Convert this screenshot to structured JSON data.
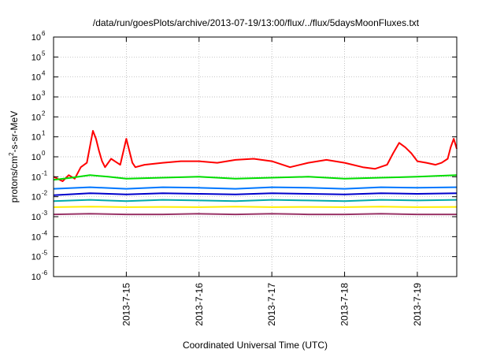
{
  "chart_data": {
    "type": "line",
    "title": "/data/run/goesPlots/archive/2013-07-19/13:00/flux/../flux/5daysMoonFluxes.txt",
    "xlabel": "Coordinated Universal Time (UTC)",
    "ylabel": {
      "prefix": "protons/cm",
      "superscript": "2",
      "suffix": "-s-sr-MeV"
    },
    "x_start": "2013-07-14 00:00",
    "x_end": "2013-07-19 13:00",
    "xticks": [
      "2013-7-15",
      "2013-7-16",
      "2013-7-17",
      "2013-7-18",
      "2013-7-19"
    ],
    "y_scale": "log",
    "ylim": [
      1e-06,
      1000000.0
    ],
    "yticks": [
      {
        "base": "10",
        "exp": "-6"
      },
      {
        "base": "10",
        "exp": "-5"
      },
      {
        "base": "10",
        "exp": "-4"
      },
      {
        "base": "10",
        "exp": "-3"
      },
      {
        "base": "10",
        "exp": "-2"
      },
      {
        "base": "10",
        "exp": "-1"
      },
      {
        "base": "10",
        "exp": "0"
      },
      {
        "base": "10",
        "exp": "1"
      },
      {
        "base": "10",
        "exp": "2"
      },
      {
        "base": "10",
        "exp": "3"
      },
      {
        "base": "10",
        "exp": "4"
      },
      {
        "base": "10",
        "exp": "5"
      },
      {
        "base": "10",
        "exp": "6"
      }
    ],
    "grid": true,
    "legend": "none",
    "series": [
      {
        "color": "#ff0000",
        "x": [
          "2013-07-14 00:00",
          "2013-07-14 03:00",
          "2013-07-14 05:00",
          "2013-07-14 07:00",
          "2013-07-14 09:00",
          "2013-07-14 11:00",
          "2013-07-14 13:00",
          "2013-07-14 14:00",
          "2013-07-14 15:00",
          "2013-07-14 16:00",
          "2013-07-14 17:00",
          "2013-07-14 19:00",
          "2013-07-14 21:00",
          "2013-07-14 22:00",
          "2013-07-15 00:00",
          "2013-07-15 02:00",
          "2013-07-15 03:00",
          "2013-07-15 06:00",
          "2013-07-15 12:00",
          "2013-07-15 18:00",
          "2013-07-16 00:00",
          "2013-07-16 06:00",
          "2013-07-16 12:00",
          "2013-07-16 18:00",
          "2013-07-17 00:00",
          "2013-07-17 06:00",
          "2013-07-17 12:00",
          "2013-07-17 18:00",
          "2013-07-18 00:00",
          "2013-07-18 06:00",
          "2013-07-18 10:00",
          "2013-07-18 14:00",
          "2013-07-18 16:00",
          "2013-07-18 18:00",
          "2013-07-18 20:00",
          "2013-07-18 22:00",
          "2013-07-19 00:00",
          "2013-07-19 03:00",
          "2013-07-19 06:00",
          "2013-07-19 08:00",
          "2013-07-19 10:00",
          "2013-07-19 11:00",
          "2013-07-19 12:00",
          "2013-07-19 13:00"
        ],
        "y": [
          0.1,
          0.06,
          0.12,
          0.08,
          0.3,
          0.5,
          20,
          8,
          2,
          0.6,
          0.3,
          0.8,
          0.5,
          0.4,
          8,
          0.5,
          0.3,
          0.4,
          0.5,
          0.6,
          0.6,
          0.5,
          0.7,
          0.8,
          0.6,
          0.3,
          0.5,
          0.7,
          0.5,
          0.3,
          0.25,
          0.4,
          1.5,
          5,
          3,
          1.5,
          0.6,
          0.5,
          0.4,
          0.5,
          0.8,
          3,
          8,
          2.5
        ]
      },
      {
        "color": "#00dd00",
        "x": [
          "2013-07-14 00:00",
          "2013-07-14 06:00",
          "2013-07-14 12:00",
          "2013-07-14 18:00",
          "2013-07-15 00:00",
          "2013-07-15 12:00",
          "2013-07-16 00:00",
          "2013-07-16 12:00",
          "2013-07-17 00:00",
          "2013-07-17 12:00",
          "2013-07-18 00:00",
          "2013-07-18 12:00",
          "2013-07-19 00:00",
          "2013-07-19 13:00"
        ],
        "y": [
          0.07,
          0.09,
          0.12,
          0.1,
          0.08,
          0.09,
          0.1,
          0.08,
          0.09,
          0.1,
          0.08,
          0.09,
          0.1,
          0.12
        ]
      },
      {
        "color": "#0077ff",
        "x": [
          "2013-07-14 00:00",
          "2013-07-14 12:00",
          "2013-07-15 00:00",
          "2013-07-15 12:00",
          "2013-07-16 00:00",
          "2013-07-16 12:00",
          "2013-07-17 00:00",
          "2013-07-17 12:00",
          "2013-07-18 00:00",
          "2013-07-18 12:00",
          "2013-07-19 00:00",
          "2013-07-19 13:00"
        ],
        "y": [
          0.025,
          0.03,
          0.025,
          0.03,
          0.028,
          0.025,
          0.03,
          0.028,
          0.025,
          0.03,
          0.028,
          0.03
        ]
      },
      {
        "color": "#0000cc",
        "x": [
          "2013-07-14 00:00",
          "2013-07-14 12:00",
          "2013-07-15 00:00",
          "2013-07-15 12:00",
          "2013-07-16 00:00",
          "2013-07-16 12:00",
          "2013-07-17 00:00",
          "2013-07-17 12:00",
          "2013-07-18 00:00",
          "2013-07-18 12:00",
          "2013-07-19 00:00",
          "2013-07-19 13:00"
        ],
        "y": [
          0.012,
          0.015,
          0.013,
          0.015,
          0.014,
          0.013,
          0.015,
          0.014,
          0.013,
          0.015,
          0.014,
          0.015
        ]
      },
      {
        "color": "#00aaaa",
        "x": [
          "2013-07-14 00:00",
          "2013-07-14 12:00",
          "2013-07-15 00:00",
          "2013-07-15 12:00",
          "2013-07-16 00:00",
          "2013-07-16 12:00",
          "2013-07-17 00:00",
          "2013-07-17 12:00",
          "2013-07-18 00:00",
          "2013-07-18 12:00",
          "2013-07-19 00:00",
          "2013-07-19 13:00"
        ],
        "y": [
          0.006,
          0.007,
          0.006,
          0.007,
          0.0065,
          0.006,
          0.007,
          0.0065,
          0.006,
          0.007,
          0.0065,
          0.007
        ]
      },
      {
        "color": "#ffee00",
        "x": [
          "2013-07-14 00:00",
          "2013-07-14 12:00",
          "2013-07-15 00:00",
          "2013-07-15 12:00",
          "2013-07-16 00:00",
          "2013-07-16 12:00",
          "2013-07-17 00:00",
          "2013-07-17 12:00",
          "2013-07-18 00:00",
          "2013-07-18 12:00",
          "2013-07-19 00:00",
          "2013-07-19 13:00"
        ],
        "y": [
          0.003,
          0.0032,
          0.003,
          0.0031,
          0.003,
          0.0032,
          0.003,
          0.0031,
          0.003,
          0.0032,
          0.003,
          0.0031
        ]
      },
      {
        "color": "#993366",
        "x": [
          "2013-07-14 00:00",
          "2013-07-14 12:00",
          "2013-07-15 00:00",
          "2013-07-15 12:00",
          "2013-07-16 00:00",
          "2013-07-16 12:00",
          "2013-07-17 00:00",
          "2013-07-17 12:00",
          "2013-07-18 00:00",
          "2013-07-18 12:00",
          "2013-07-19 00:00",
          "2013-07-19 13:00"
        ],
        "y": [
          0.0013,
          0.0014,
          0.0013,
          0.0013,
          0.0014,
          0.0013,
          0.0014,
          0.0013,
          0.0013,
          0.0014,
          0.0013,
          0.0013
        ]
      }
    ]
  }
}
